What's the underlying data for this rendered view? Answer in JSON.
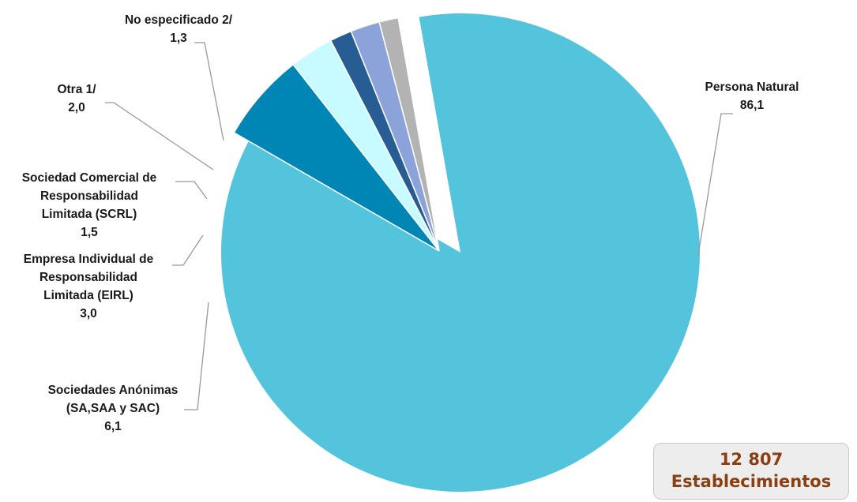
{
  "chart_data": {
    "type": "pie",
    "title": "",
    "slices": [
      {
        "label_lines": [
          "Persona Natural"
        ],
        "value": 86.1,
        "value_text": "86,1",
        "color": "#54c3dc"
      },
      {
        "label_lines": [
          "Sociedades Anónimas",
          "(SA,SAA y SAC)"
        ],
        "value": 6.1,
        "value_text": "6,1",
        "color": "#0086b5"
      },
      {
        "label_lines": [
          "Empresa Individual de",
          "Responsabilidad",
          "Limitada (EIRL)"
        ],
        "value": 3.0,
        "value_text": "3,0",
        "color": "#c8fbff"
      },
      {
        "label_lines": [
          "Sociedad Comercial de",
          "Responsabilidad",
          "Limitada (SCRL)"
        ],
        "value": 1.5,
        "value_text": "1,5",
        "color": "#285d93"
      },
      {
        "label_lines": [
          "Otra 1/"
        ],
        "value": 2.0,
        "value_text": "2,0",
        "color": "#8ca3d9"
      },
      {
        "label_lines": [
          "No especificado 2/"
        ],
        "value": 1.3,
        "value_text": "1,3",
        "color": "#b3b3b3"
      }
    ]
  },
  "total": {
    "value": "12 807",
    "unit": "Establecimientos"
  }
}
